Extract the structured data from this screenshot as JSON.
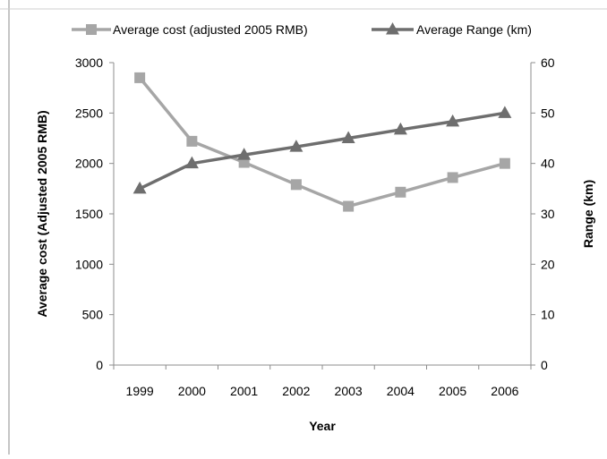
{
  "chart_data": {
    "type": "line",
    "categories": [
      "1999",
      "2000",
      "2001",
      "2002",
      "2003",
      "2004",
      "2005",
      "2006"
    ],
    "series": [
      {
        "name": "Average cost (adjusted 2005 RMB)",
        "axis": "left",
        "marker": "square",
        "color": "#a6a6a6",
        "values": [
          2850,
          2220,
          2010,
          1790,
          1575,
          1715,
          1860,
          2000
        ]
      },
      {
        "name": "Average Range (km)",
        "axis": "right",
        "marker": "triangle",
        "color": "#6e6e6e",
        "values": [
          35,
          40,
          41.7,
          43.3,
          45,
          46.7,
          48.3,
          50
        ]
      }
    ],
    "xlabel": "Year",
    "ylabel": "Average cost (Adjusted 2005 RMB)",
    "y2label": "Range (km)",
    "ylim": [
      0,
      3000
    ],
    "y2lim": [
      0,
      60
    ],
    "yticks": [
      0,
      500,
      1000,
      1500,
      2000,
      2500,
      3000
    ],
    "y2ticks": [
      0,
      10,
      20,
      30,
      40,
      50,
      60
    ],
    "grid": false,
    "legend_position": "top"
  }
}
